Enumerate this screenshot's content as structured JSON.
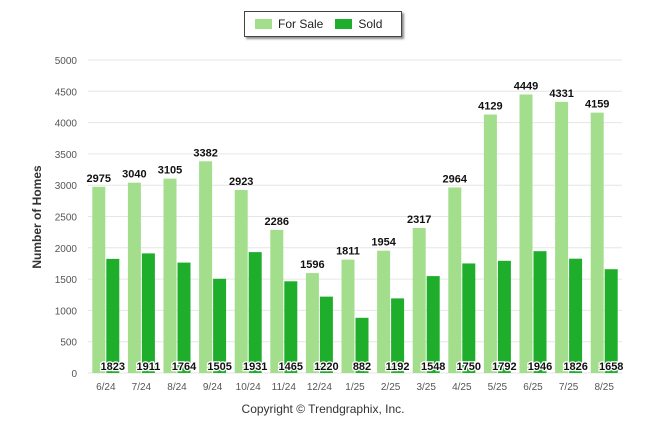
{
  "legend": {
    "for_sale_label": "For Sale",
    "sold_label": "Sold"
  },
  "footer": {
    "copyright": "Copyright © Trendgraphix, Inc."
  },
  "colors": {
    "for_sale": "#a3de8c",
    "sold": "#1fae2b",
    "grid": "#e6e6e6",
    "axis_text": "#555555"
  },
  "chart_data": {
    "type": "bar",
    "ylabel": "Number of Homes",
    "ylim": [
      0,
      5000
    ],
    "yticks": [
      0,
      500,
      1000,
      1500,
      2000,
      2500,
      3000,
      3500,
      4000,
      4500,
      5000
    ],
    "grid": true,
    "legend_position": "top-center",
    "categories": [
      "6/24",
      "7/24",
      "8/24",
      "9/24",
      "10/24",
      "11/24",
      "12/24",
      "1/25",
      "2/25",
      "3/25",
      "4/25",
      "5/25",
      "6/25",
      "7/25",
      "8/25"
    ],
    "series": [
      {
        "name": "For Sale",
        "values": [
          2975,
          3040,
          3105,
          3382,
          2923,
          2286,
          1596,
          1811,
          1954,
          2317,
          2964,
          4129,
          4449,
          4331,
          4159
        ]
      },
      {
        "name": "Sold",
        "values": [
          1823,
          1911,
          1764,
          1505,
          1931,
          1465,
          1220,
          882,
          1192,
          1548,
          1750,
          1792,
          1946,
          1826,
          1658
        ]
      }
    ]
  }
}
